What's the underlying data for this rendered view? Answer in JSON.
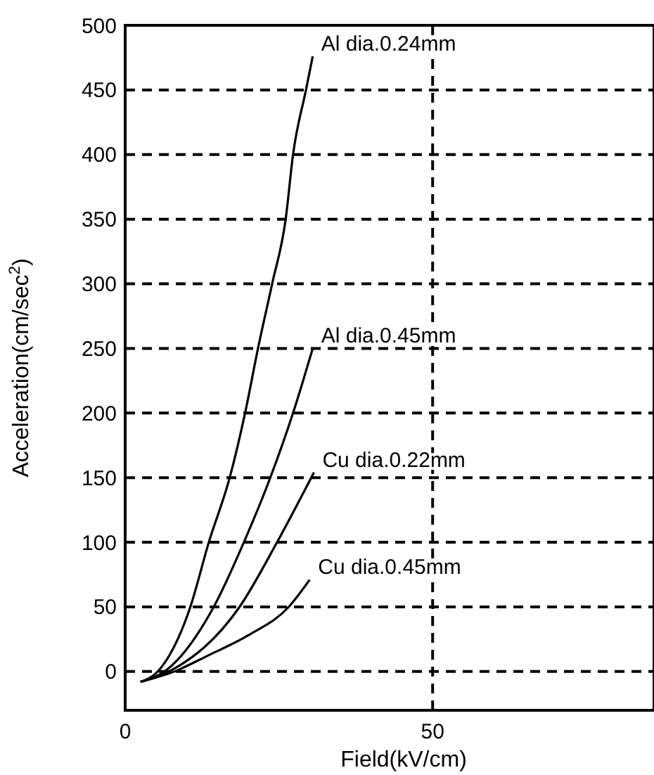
{
  "chart_data": {
    "type": "line",
    "xlabel": "Field(kV/cm)",
    "ylabel": "Acceleration(cm/sec$^{2}$)",
    "xlim": [
      0,
      86
    ],
    "ylim": [
      -30,
      500
    ],
    "xticks": [
      0,
      50
    ],
    "yticks": [
      0,
      50,
      100,
      150,
      200,
      250,
      300,
      350,
      400,
      450,
      500
    ],
    "grid": true,
    "line_style": "solid",
    "marker": "none",
    "series": [
      {
        "name": "Al dia.0.24mm",
        "color": "#000000",
        "x": [
          2.5,
          5.3,
          10.6,
          13.6,
          17.0,
          19.5,
          21.6,
          23.9,
          26.1,
          27.3,
          29.4,
          30.5
        ],
        "values": [
          -8,
          0,
          50,
          100,
          150,
          200,
          250,
          300,
          350,
          400,
          450,
          476
        ]
      },
      {
        "name": "Al dia.0.45mm",
        "color": "#000000",
        "x": [
          2.5,
          6.4,
          14.4,
          19.3,
          23.6,
          27.3,
          30.5
        ],
        "values": [
          -8,
          0,
          50,
          100,
          150,
          200,
          250
        ]
      },
      {
        "name": "Cu dia.0.22mm",
        "color": "#000000",
        "x": [
          2.5,
          7.1,
          18.6,
          24.7,
          30.7
        ],
        "values": [
          -8,
          0,
          50,
          100,
          154
        ]
      },
      {
        "name": "Cu dia.0.45mm",
        "color": "#000000",
        "x": [
          2.5,
          8,
          13.3,
          20,
          26.6,
          30
        ],
        "values": [
          -8,
          0,
          12,
          28,
          50,
          71
        ]
      }
    ]
  }
}
